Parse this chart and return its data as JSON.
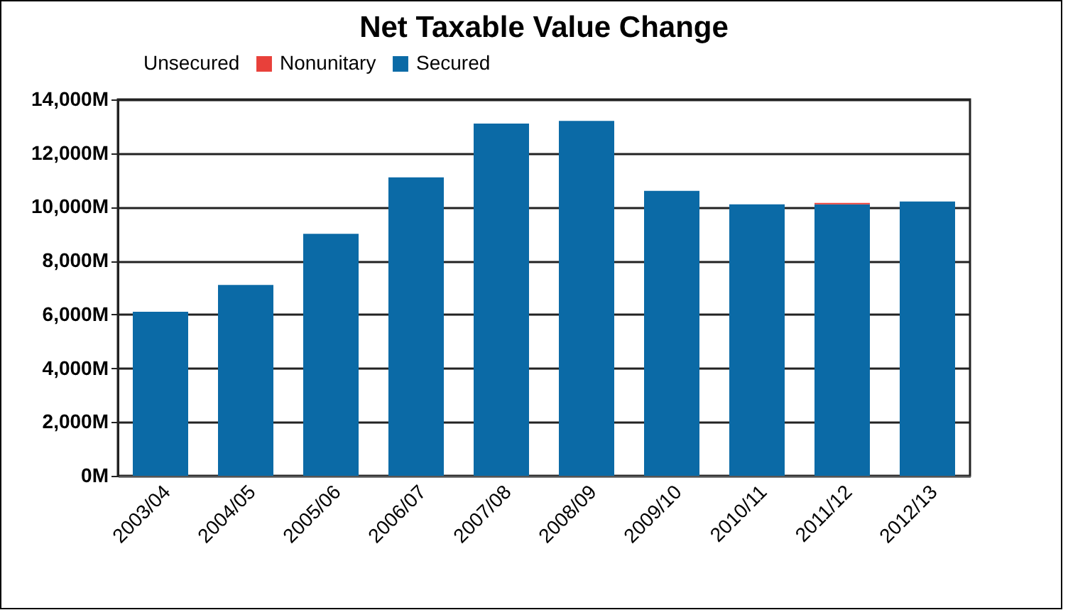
{
  "chart_data": {
    "type": "bar",
    "title": "Net Taxable Value Change",
    "stacked": true,
    "categories": [
      "2003/04",
      "2004/05",
      "2005/06",
      "2006/07",
      "2007/08",
      "2008/09",
      "2009/10",
      "2010/11",
      "2011/12",
      "2012/13"
    ],
    "series": [
      {
        "name": "Secured",
        "color": "#0b6aa6",
        "values": [
          6100,
          7100,
          9000,
          11100,
          13100,
          13200,
          10600,
          10100,
          10100,
          10200
        ]
      },
      {
        "name": "Nonunitary",
        "color": "#e8403a",
        "values": [
          null,
          null,
          null,
          null,
          null,
          null,
          null,
          null,
          50,
          null
        ]
      },
      {
        "name": "Unsecured",
        "values": [
          null,
          null,
          null,
          null,
          null,
          null,
          null,
          null,
          null,
          null
        ]
      }
    ],
    "ylim": [
      0,
      14000
    ],
    "yticks": [
      {
        "value": 0,
        "label": "0M"
      },
      {
        "value": 2000,
        "label": "2,000M"
      },
      {
        "value": 4000,
        "label": "4,000M"
      },
      {
        "value": 6000,
        "label": "6,000M"
      },
      {
        "value": 8000,
        "label": "8,000M"
      },
      {
        "value": 10000,
        "label": "10,000M"
      },
      {
        "value": 12000,
        "label": "12,000M"
      },
      {
        "value": 14000,
        "label": "14,000M"
      }
    ],
    "grid": "y",
    "legend": "top"
  }
}
